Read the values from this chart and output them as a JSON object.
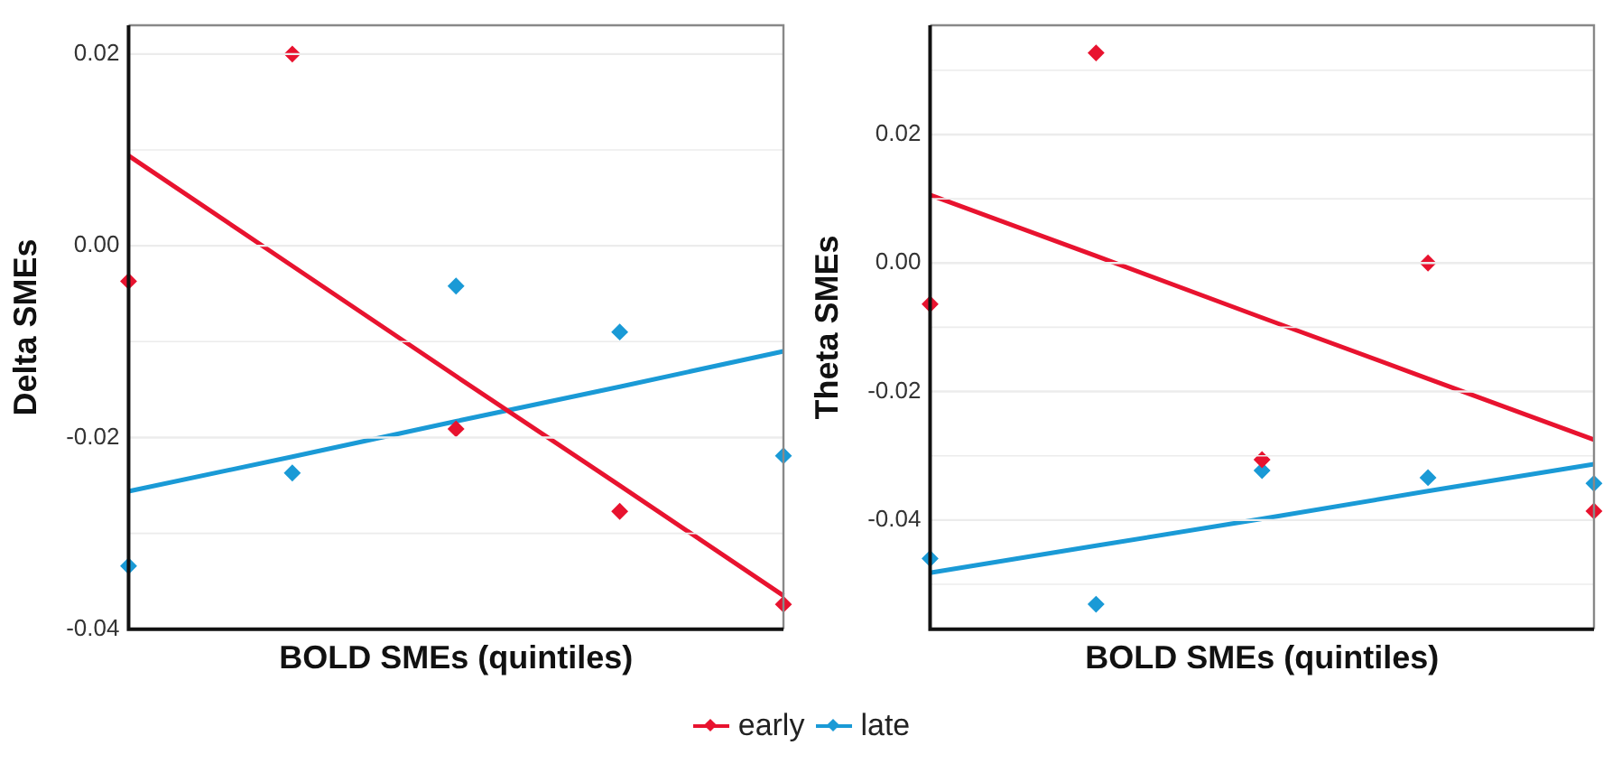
{
  "chart_data": [
    {
      "type": "scatter",
      "ylabel": "Delta SMEs",
      "xlabel": "BOLD SMEs (quintiles)",
      "categories": [
        null,
        null,
        null,
        null,
        null
      ],
      "ylim": [
        -0.04,
        0.023
      ],
      "yticks": [
        -0.04,
        {
          "value": -0.03,
          "label": null
        },
        -0.02,
        {
          "value": -0.01,
          "label": null
        },
        {
          "value": 0,
          "label": "0.00"
        },
        {
          "value": 0.01,
          "label": null
        },
        0.02
      ],
      "tick_labels": "y",
      "grid": "y",
      "marker": "diamond",
      "legend": "bottom",
      "series": [
        {
          "name": "early",
          "color": "#e8132f",
          "values": [
            -0.0037,
            0.02,
            -0.0191,
            -0.0277,
            -0.0374
          ]
        },
        {
          "name": "late",
          "color": "#1a9ad6",
          "values": [
            -0.0334,
            -0.0237,
            -0.0042,
            -0.009,
            -0.0219
          ]
        },
        {
          "type": "line",
          "marker": "none",
          "color": "#e8132f",
          "values": [
            0.0094,
            -0.0021,
            -0.0136,
            -0.025,
            -0.0365
          ]
        },
        {
          "type": "line",
          "marker": "none",
          "color": "#1a9ad6",
          "values": [
            -0.0256,
            -0.022,
            -0.0183,
            -0.0147,
            -0.011
          ]
        }
      ]
    },
    {
      "type": "scatter",
      "ylabel": "Theta SMEs",
      "xlabel": "BOLD SMEs (quintiles)",
      "categories": [
        null,
        null,
        null,
        null,
        null
      ],
      "ylim": [
        -0.057,
        0.037
      ],
      "yticks": [
        {
          "value": -0.05,
          "label": null
        },
        -0.04,
        {
          "value": -0.03,
          "label": null
        },
        -0.02,
        {
          "value": -0.01,
          "label": null
        },
        {
          "value": 0,
          "label": "0.00"
        },
        {
          "value": 0.01,
          "label": null
        },
        0.02,
        {
          "value": 0.03,
          "label": null
        }
      ],
      "tick_labels": "y",
      "grid": "y",
      "marker": "diamond",
      "series": [
        {
          "color": "#e8132f",
          "values": [
            -0.0064,
            0.0327,
            -0.0306,
            0.0,
            -0.0386
          ]
        },
        {
          "color": "#1a9ad6",
          "values": [
            -0.046,
            -0.0531,
            -0.0323,
            -0.0334,
            -0.0343
          ]
        },
        {
          "type": "line",
          "marker": "none",
          "color": "#e8132f",
          "values": [
            0.0106,
            0.0011,
            -0.0085,
            -0.018,
            -0.0275
          ]
        },
        {
          "type": "line",
          "marker": "none",
          "color": "#1a9ad6",
          "values": [
            -0.0482,
            -0.044,
            -0.0398,
            -0.0355,
            -0.0313
          ]
        }
      ]
    }
  ]
}
